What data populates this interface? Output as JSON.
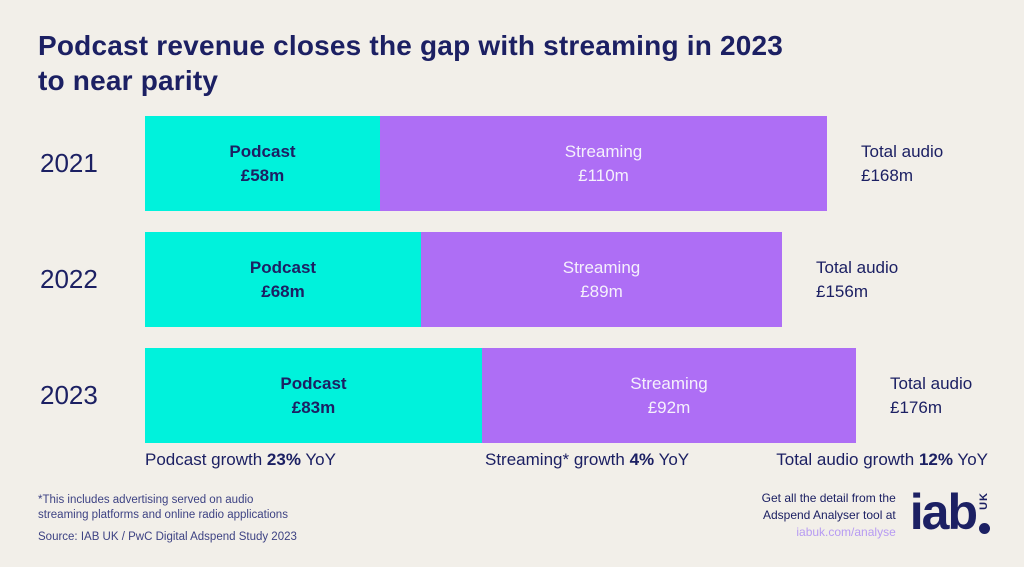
{
  "title": {
    "line1": "Podcast revenue closes the gap with streaming in 2023",
    "line2": "to near parity"
  },
  "colors": {
    "background": "#F2EFE9",
    "navy": "#1C2063",
    "podcast_cyan": "#00F2DC",
    "streaming_purple": "#AE6EF5",
    "link_purple": "#B79BF2"
  },
  "chart_data": {
    "type": "bar",
    "orientation": "horizontal",
    "stacked": true,
    "unit": "£m",
    "xlim": [
      0,
      176
    ],
    "categories": [
      "2021",
      "2022",
      "2023"
    ],
    "series": [
      {
        "name": "Podcast",
        "values": [
          58,
          68,
          83
        ],
        "color": "#00F2DC"
      },
      {
        "name": "Streaming",
        "values": [
          110,
          89,
          92
        ],
        "color": "#AE6EF5"
      }
    ],
    "totals": {
      "name": "Total audio",
      "values": [
        168,
        156,
        176
      ]
    },
    "rows": [
      {
        "year": "2021",
        "podcast": {
          "name": "Podcast",
          "value": 58,
          "value_label": "£58m"
        },
        "streaming": {
          "name": "Streaming",
          "value": 110,
          "value_label": "£110m"
        },
        "total": {
          "name": "Total audio",
          "value_label": "£168m"
        }
      },
      {
        "year": "2022",
        "podcast": {
          "name": "Podcast",
          "value": 68,
          "value_label": "£68m"
        },
        "streaming": {
          "name": "Streaming",
          "value": 89,
          "value_label": "£89m"
        },
        "total": {
          "name": "Total audio",
          "value_label": "£156m"
        }
      },
      {
        "year": "2023",
        "podcast": {
          "name": "Podcast",
          "value": 83,
          "value_label": "£83m"
        },
        "streaming": {
          "name": "Streaming",
          "value": 92,
          "value_label": "£92m"
        },
        "total": {
          "name": "Total audio",
          "value_label": "£176m"
        }
      }
    ],
    "growth": [
      {
        "prefix": "Podcast growth",
        "pct": "23%",
        "suffix": "YoY"
      },
      {
        "prefix": "Streaming* growth",
        "pct": "4%",
        "suffix": "YoY"
      },
      {
        "prefix": "Total audio growth",
        "pct": "12%",
        "suffix": "YoY"
      }
    ]
  },
  "footer": {
    "footnote_line1": "*This includes advertising served on audio",
    "footnote_line2": "streaming platforms and online radio applications",
    "source": "Source: IAB UK / PwC Digital Adspend Study 2023",
    "promo_line1": "Get all the detail from the",
    "promo_line2": "Adspend Analyser tool at",
    "promo_link": "iabuk.com/analyse",
    "logo_text": "iab",
    "logo_suffix": "UK"
  }
}
